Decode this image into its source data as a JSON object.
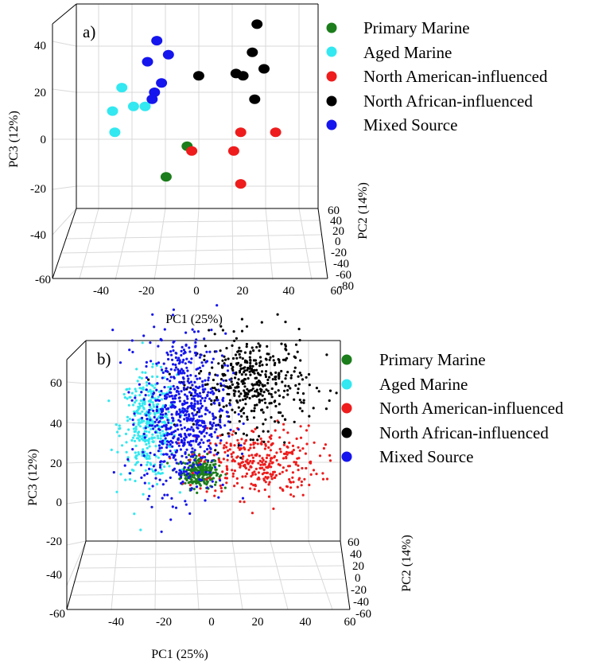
{
  "colors": {
    "primary_marine": "#1b7d1b",
    "aged_marine": "#33e8f0",
    "north_american": "#ee1c1c",
    "north_african": "#000000",
    "mixed_source": "#1515ee"
  },
  "legend": [
    {
      "label": "Primary Marine",
      "color": "#1b7d1b"
    },
    {
      "label": "Aged Marine",
      "color": "#33e8f0"
    },
    {
      "label": "North American-influenced",
      "color": "#ee1c1c"
    },
    {
      "label": "North African-influenced",
      "color": "#000000"
    },
    {
      "label": "Mixed Source",
      "color": "#1515ee"
    }
  ],
  "chart_data": [
    {
      "type": "scatter",
      "panel": "a)",
      "xlabel": "PC1 (25%)",
      "ylabel": "PC3 (12%)",
      "zlabel": "PC2 (14%)",
      "x_ticks": [
        "-40",
        "-20",
        "0",
        "20",
        "40",
        "60"
      ],
      "y_ticks": [
        "40",
        "20",
        "0",
        "-20",
        "-40",
        "-60"
      ],
      "z_ticks": [
        "60",
        "40",
        "20",
        "0",
        "-20",
        "-40",
        "-60",
        "-80"
      ],
      "xlim": [
        -60,
        60
      ],
      "ylim": [
        -60,
        40
      ],
      "grid": true,
      "legend_position": "right",
      "series": [
        {
          "name": "Primary Marine",
          "points": [
            [
              -4,
              -3
            ],
            [
              -13,
              -16
            ]
          ]
        },
        {
          "name": "Aged Marine",
          "points": [
            [
              -32,
              22
            ],
            [
              -36,
              12
            ],
            [
              -27,
              14
            ],
            [
              -22,
              14
            ],
            [
              -35,
              3
            ]
          ]
        },
        {
          "name": "North American-influenced",
          "points": [
            [
              -2,
              -5
            ],
            [
              16,
              -5
            ],
            [
              19,
              3
            ],
            [
              34,
              3
            ],
            [
              19,
              -19
            ]
          ]
        },
        {
          "name": "North African-influenced",
          "points": [
            [
              1,
              27
            ],
            [
              26,
              49
            ],
            [
              24,
              37
            ],
            [
              17,
              28
            ],
            [
              20,
              27
            ],
            [
              29,
              30
            ],
            [
              25,
              17
            ]
          ]
        },
        {
          "name": "Mixed Source",
          "points": [
            [
              -17,
              42
            ],
            [
              -12,
              36
            ],
            [
              -21,
              33
            ],
            [
              -15,
              24
            ],
            [
              -18,
              20
            ],
            [
              -19,
              17
            ]
          ]
        }
      ]
    },
    {
      "type": "scatter",
      "panel": "b)",
      "xlabel": "PC1 (25%)",
      "ylabel": "PC3 (12%)",
      "zlabel": "PC2 (14%)",
      "x_ticks": [
        "-40",
        "-20",
        "0",
        "20",
        "40",
        "60"
      ],
      "y_ticks": [
        "60",
        "40",
        "20",
        "0",
        "-20",
        "-40",
        "-60"
      ],
      "z_ticks": [
        "60",
        "40",
        "20",
        "0",
        "-20",
        "-40",
        "-60"
      ],
      "xlim": [
        -60,
        60
      ],
      "ylim": [
        -60,
        60
      ],
      "grid": true,
      "legend_position": "right",
      "clusters": [
        {
          "name": "Primary Marine",
          "center": [
            -5,
            -5
          ],
          "spread": [
            4,
            4
          ],
          "count": 260
        },
        {
          "name": "Aged Marine",
          "center": [
            -27,
            18
          ],
          "spread": [
            6,
            13
          ],
          "count": 360
        },
        {
          "name": "North American-influenced",
          "center": [
            20,
            0
          ],
          "spread": [
            13,
            9
          ],
          "count": 320
        },
        {
          "name": "North African-influenced",
          "center": [
            18,
            40
          ],
          "spread": [
            12,
            12
          ],
          "count": 420
        },
        {
          "name": "Mixed Source",
          "center": [
            -12,
            25
          ],
          "spread": [
            9,
            20
          ],
          "count": 700
        }
      ]
    }
  ]
}
